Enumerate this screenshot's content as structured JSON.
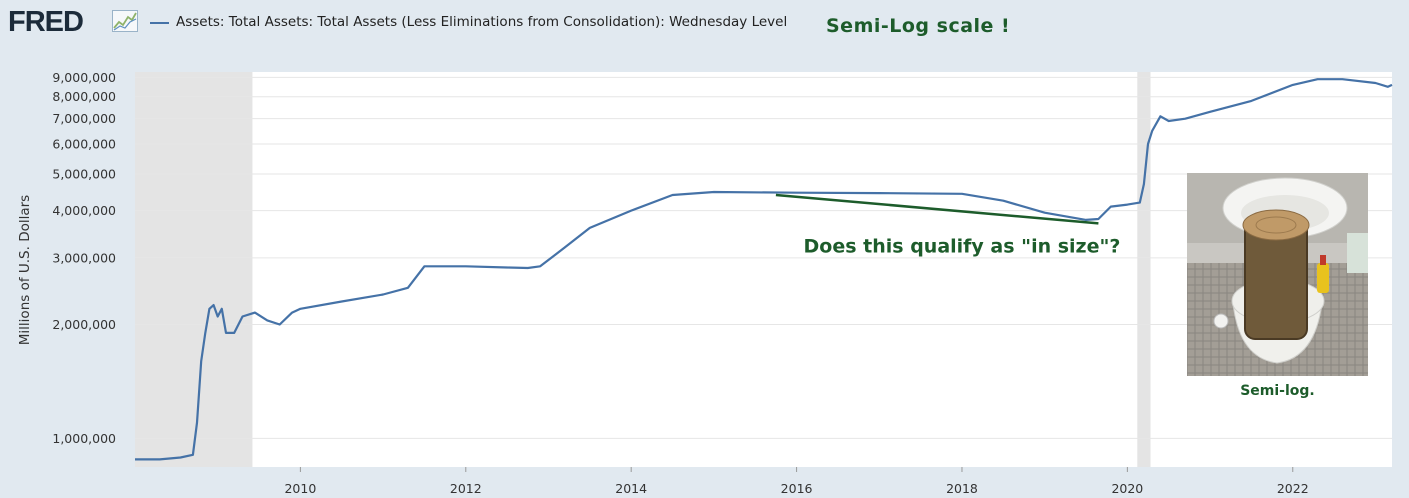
{
  "header": {
    "logo_text": "FRED",
    "logo_icon": "chart-line-icon",
    "annotation_title": "Semi-Log scale !"
  },
  "chart_data": {
    "type": "line",
    "series": [
      {
        "name": "Assets: Total Assets: Total Assets (Less Eliminations from Consolidation): Wednesday Level",
        "color": "#4572a7",
        "x": [
          2008.0,
          2008.3,
          2008.55,
          2008.7,
          2008.75,
          2008.8,
          2008.85,
          2008.9,
          2008.95,
          2009.0,
          2009.05,
          2009.1,
          2009.2,
          2009.3,
          2009.45,
          2009.6,
          2009.75,
          2009.9,
          2010.0,
          2010.5,
          2011.0,
          2011.3,
          2011.5,
          2011.7,
          2012.0,
          2012.5,
          2012.75,
          2012.9,
          2013.2,
          2013.5,
          2014.0,
          2014.5,
          2015.0,
          2016.0,
          2017.0,
          2018.0,
          2018.5,
          2019.0,
          2019.5,
          2019.65,
          2019.8,
          2020.0,
          2020.15,
          2020.2,
          2020.25,
          2020.3,
          2020.4,
          2020.5,
          2020.7,
          2021.0,
          2021.5,
          2022.0,
          2022.3,
          2022.6,
          2023.0,
          2023.15,
          2023.2
        ],
        "y": [
          880000,
          880000,
          890000,
          905000,
          1100000,
          1600000,
          1900000,
          2200000,
          2250000,
          2100000,
          2200000,
          1900000,
          1900000,
          2100000,
          2150000,
          2050000,
          2000000,
          2150000,
          2200000,
          2300000,
          2400000,
          2500000,
          2850000,
          2850000,
          2850000,
          2830000,
          2820000,
          2850000,
          3200000,
          3600000,
          4000000,
          4400000,
          4480000,
          4460000,
          4450000,
          4430000,
          4250000,
          3950000,
          3780000,
          3800000,
          4100000,
          4150000,
          4200000,
          4700000,
          6000000,
          6500000,
          7100000,
          6900000,
          7000000,
          7300000,
          7800000,
          8600000,
          8900000,
          8900000,
          8700000,
          8500000,
          8600000
        ]
      }
    ],
    "yticks": [
      1000000,
      2000000,
      3000000,
      4000000,
      5000000,
      6000000,
      7000000,
      8000000,
      9000000
    ],
    "ytick_labels": [
      "1,000,000",
      "2,000,000",
      "3,000,000",
      "4,000,000",
      "5,000,000",
      "6,000,000",
      "7,000,000",
      "8,000,000",
      "9,000,000"
    ],
    "xticks": [
      2010,
      2012,
      2014,
      2016,
      2018,
      2020,
      2022
    ],
    "xtick_labels": [
      "2010",
      "2012",
      "2014",
      "2016",
      "2018",
      "2020",
      "2022"
    ],
    "ylabel": "Millions of U.S. Dollars",
    "xlim": [
      2008.0,
      2023.2
    ],
    "ylim": [
      840000,
      9300000
    ],
    "yscale": "log",
    "grid": "horizontal",
    "recessions": [
      [
        2008.0,
        2009.42
      ],
      [
        2020.12,
        2020.28
      ]
    ],
    "annotation_line": {
      "x": [
        2015.75,
        2019.65
      ],
      "y": [
        4400000,
        3700000
      ],
      "color": "#1d5c2b"
    },
    "annotation_text": "Does this qualify as \"in size\"?",
    "annotation_text_at": {
      "x": 2018.0,
      "y": 3100000
    }
  },
  "inset": {
    "caption": "Semi-log."
  }
}
